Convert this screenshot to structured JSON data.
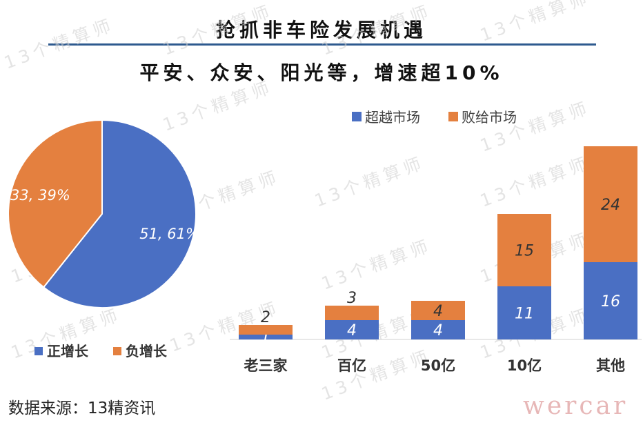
{
  "title": "抢抓非车险发展机遇",
  "subtitle": "平安、众安、阳光等，增速超10%",
  "source": "数据来源：13精资讯",
  "watermark": "13个精算师",
  "logo": "wercar",
  "colors": {
    "blue": "#4a6fc3",
    "orange": "#e4803f",
    "rule": "#2e5a8f"
  },
  "chart_data": [
    {
      "type": "pie",
      "slices": [
        {
          "name": "正增长",
          "value": 51,
          "percent": 61,
          "label": "51, 61%",
          "color": "#4a6fc3"
        },
        {
          "name": "负增长",
          "value": 33,
          "percent": 39,
          "label": "33, 39%",
          "color": "#e4803f"
        }
      ],
      "legend_position": "bottom"
    },
    {
      "type": "bar",
      "stacked": true,
      "categories": [
        "老三家",
        "百亿",
        "50亿",
        "10亿",
        "其他"
      ],
      "series": [
        {
          "name": "超越市场",
          "values": [
            1,
            4,
            4,
            11,
            16
          ],
          "color": "#4a6fc3"
        },
        {
          "name": "败给市场",
          "values": [
            2,
            3,
            4,
            15,
            24
          ],
          "color": "#e4803f"
        }
      ],
      "legend_position": "top",
      "grid": false
    }
  ]
}
